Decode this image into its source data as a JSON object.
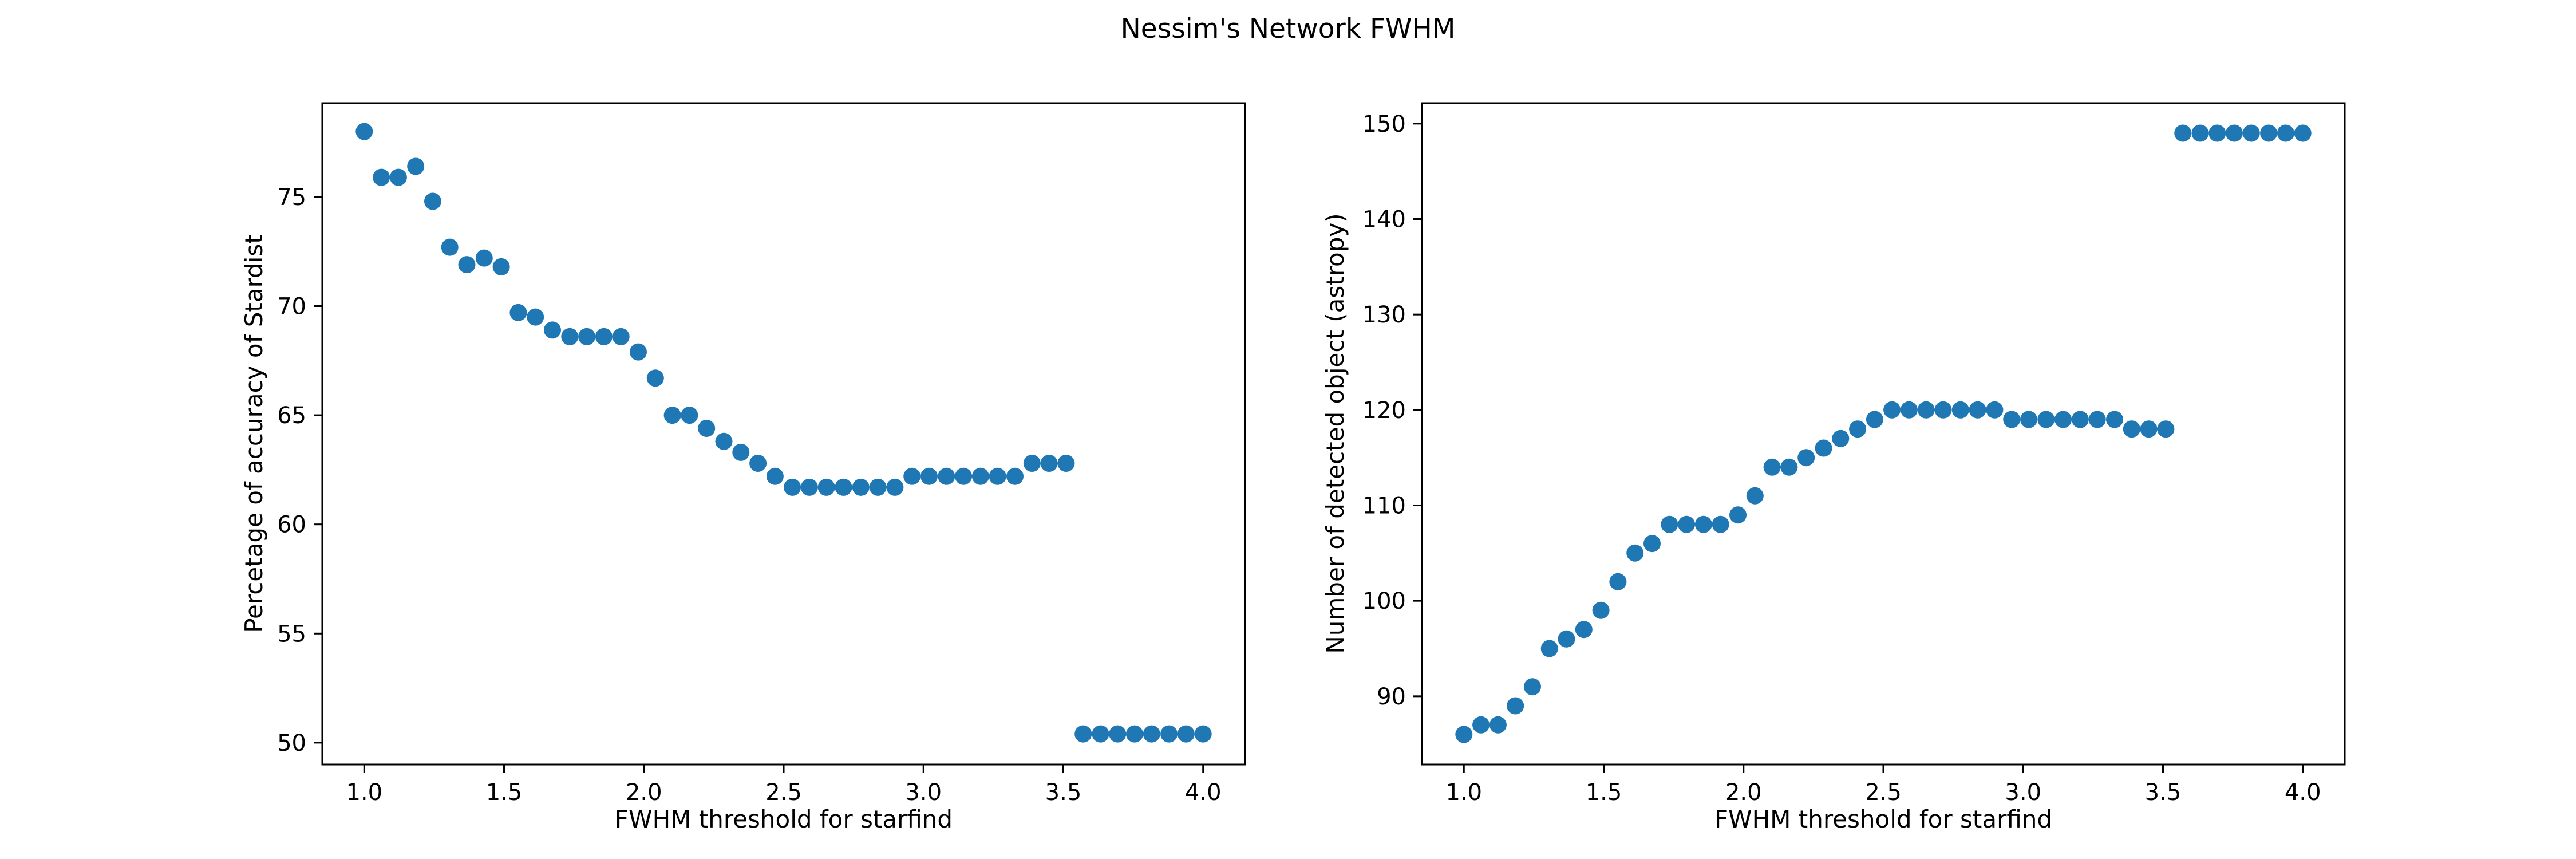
{
  "figure": {
    "title": "Nessim's Network FWHM"
  },
  "chart_data": [
    {
      "type": "scatter",
      "xlabel": "FWHM threshold for starfind",
      "ylabel": "Percetage of accuracy of Stardist",
      "xlim": [
        0.85,
        4.15
      ],
      "ylim": [
        49.0,
        79.3
      ],
      "xticks": [
        1.0,
        1.5,
        2.0,
        2.5,
        3.0,
        3.5,
        4.0
      ],
      "xtick_labels": [
        "1.0",
        "1.5",
        "2.0",
        "2.5",
        "3.0",
        "3.5",
        "4.0"
      ],
      "yticks": [
        50,
        55,
        60,
        65,
        70,
        75
      ],
      "ytick_labels": [
        "50",
        "55",
        "60",
        "65",
        "70",
        "75"
      ],
      "grid": false,
      "color": "#1f77b4",
      "x": [
        1.0,
        1.061,
        1.122,
        1.184,
        1.245,
        1.306,
        1.367,
        1.429,
        1.49,
        1.551,
        1.612,
        1.673,
        1.735,
        1.796,
        1.857,
        1.918,
        1.98,
        2.041,
        2.102,
        2.163,
        2.224,
        2.286,
        2.347,
        2.408,
        2.469,
        2.531,
        2.592,
        2.653,
        2.714,
        2.776,
        2.837,
        2.898,
        2.959,
        3.02,
        3.082,
        3.143,
        3.204,
        3.265,
        3.327,
        3.388,
        3.449,
        3.51,
        3.571,
        3.633,
        3.694,
        3.755,
        3.816,
        3.878,
        3.939,
        4.0
      ],
      "y": [
        78.0,
        75.9,
        75.9,
        76.4,
        74.8,
        72.7,
        71.9,
        72.2,
        71.8,
        69.7,
        69.5,
        68.9,
        68.6,
        68.6,
        68.6,
        68.6,
        67.9,
        66.7,
        65.0,
        65.0,
        64.4,
        63.8,
        63.3,
        62.8,
        62.2,
        61.7,
        61.7,
        61.7,
        61.7,
        61.7,
        61.7,
        61.7,
        62.2,
        62.2,
        62.2,
        62.2,
        62.2,
        62.2,
        62.2,
        62.8,
        62.8,
        62.8,
        50.4,
        50.4,
        50.4,
        50.4,
        50.4,
        50.4,
        50.4,
        50.4
      ]
    },
    {
      "type": "scatter",
      "xlabel": "FWHM threshold for starfind",
      "ylabel": "Number of detected object (astropy)",
      "xlim": [
        0.85,
        4.15
      ],
      "ylim": [
        82.85,
        152.15
      ],
      "xticks": [
        1.0,
        1.5,
        2.0,
        2.5,
        3.0,
        3.5,
        4.0
      ],
      "xtick_labels": [
        "1.0",
        "1.5",
        "2.0",
        "2.5",
        "3.0",
        "3.5",
        "4.0"
      ],
      "yticks": [
        90,
        100,
        110,
        120,
        130,
        140,
        150
      ],
      "ytick_labels": [
        "90",
        "100",
        "110",
        "120",
        "130",
        "140",
        "150"
      ],
      "grid": false,
      "color": "#1f77b4",
      "x": [
        1.0,
        1.061,
        1.122,
        1.184,
        1.245,
        1.306,
        1.367,
        1.429,
        1.49,
        1.551,
        1.612,
        1.673,
        1.735,
        1.796,
        1.857,
        1.918,
        1.98,
        2.041,
        2.102,
        2.163,
        2.224,
        2.286,
        2.347,
        2.408,
        2.469,
        2.531,
        2.592,
        2.653,
        2.714,
        2.776,
        2.837,
        2.898,
        2.959,
        3.02,
        3.082,
        3.143,
        3.204,
        3.265,
        3.327,
        3.388,
        3.449,
        3.51,
        3.571,
        3.633,
        3.694,
        3.755,
        3.816,
        3.878,
        3.939,
        4.0
      ],
      "y": [
        86,
        87,
        87,
        89,
        91,
        95,
        96,
        97,
        99,
        102,
        105,
        106,
        108,
        108,
        108,
        108,
        109,
        111,
        114,
        114,
        115,
        116,
        117,
        118,
        119,
        120,
        120,
        120,
        120,
        120,
        120,
        120,
        119,
        119,
        119,
        119,
        119,
        119,
        119,
        118,
        118,
        118,
        149,
        149,
        149,
        149,
        149,
        149,
        149,
        149
      ]
    }
  ]
}
